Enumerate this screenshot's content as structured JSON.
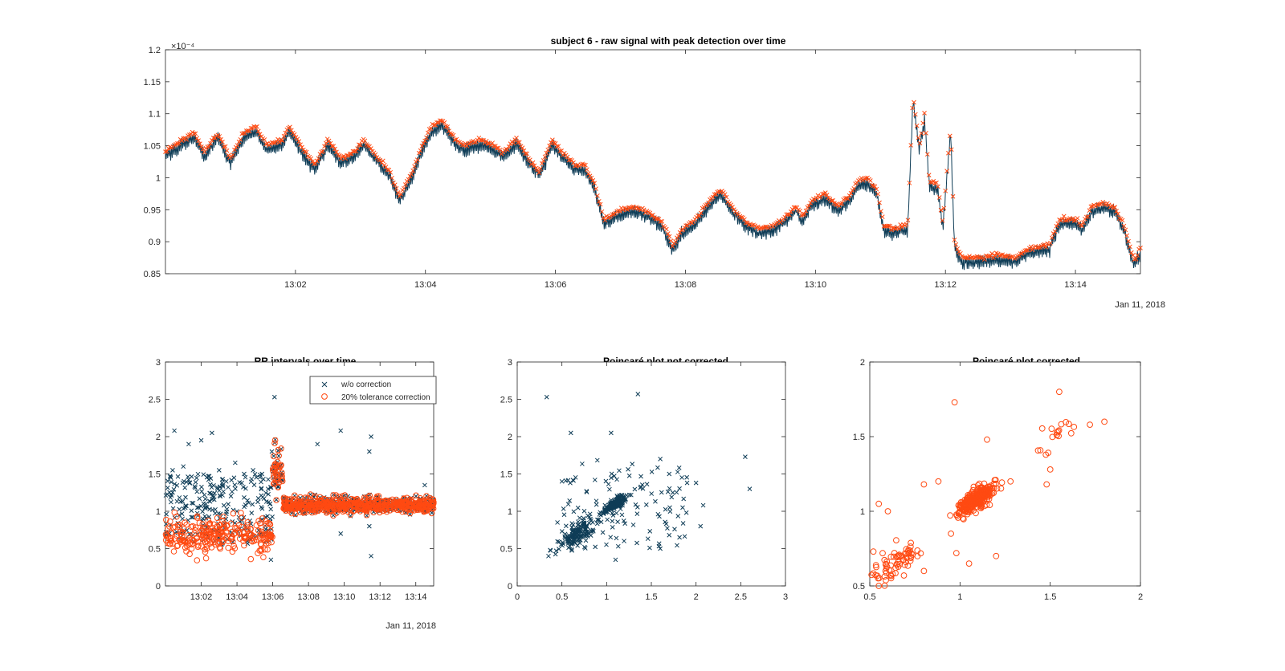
{
  "figure": {
    "background": "#ffffff",
    "colors": {
      "signal": "#0f3d57",
      "peaks": "#ff4a12",
      "axis": "#262626"
    }
  },
  "chart_data": [
    {
      "id": "top",
      "type": "line",
      "title": "subject 6 - raw signal with peak detection over time",
      "x_axis": "time",
      "xlim_min": [
        0.0,
        15.0
      ],
      "x_ticks_min": [
        2,
        4,
        6,
        8,
        10,
        12,
        14
      ],
      "x_tick_labels": [
        "13:02",
        "13:04",
        "13:06",
        "13:08",
        "13:10",
        "13:12",
        "13:14"
      ],
      "x_axis_note": "Jan 11, 2018",
      "ylim": [
        0.85,
        1.2
      ],
      "y_ticks": [
        0.85,
        0.9,
        0.95,
        1.0,
        1.05,
        1.1,
        1.15,
        1.2
      ],
      "y_tick_labels": [
        "0.85",
        "0.9",
        "0.95",
        "1",
        "1.05",
        "1.1",
        "1.15",
        "1.2"
      ],
      "y_exponent": "×10⁻⁴",
      "series": [
        {
          "style": "line",
          "color": "#0f3d57",
          "envelope_min": [
            [
              0.0,
              1.04
            ],
            [
              0.25,
              1.06
            ],
            [
              0.45,
              1.07
            ],
            [
              0.6,
              1.04
            ],
            [
              0.8,
              1.07
            ],
            [
              1.0,
              1.03
            ],
            [
              1.2,
              1.07
            ],
            [
              1.4,
              1.08
            ],
            [
              1.55,
              1.05
            ],
            [
              1.8,
              1.06
            ],
            [
              1.9,
              1.08
            ],
            [
              2.15,
              1.04
            ],
            [
              2.3,
              1.02
            ],
            [
              2.5,
              1.06
            ],
            [
              2.7,
              1.03
            ],
            [
              2.9,
              1.04
            ],
            [
              3.05,
              1.06
            ],
            [
              3.2,
              1.04
            ],
            [
              3.45,
              1.01
            ],
            [
              3.6,
              0.97
            ],
            [
              3.8,
              1.01
            ],
            [
              3.95,
              1.05
            ],
            [
              4.1,
              1.08
            ],
            [
              4.25,
              1.09
            ],
            [
              4.45,
              1.06
            ],
            [
              4.6,
              1.05
            ],
            [
              4.85,
              1.06
            ],
            [
              5.05,
              1.05
            ],
            [
              5.2,
              1.04
            ],
            [
              5.4,
              1.06
            ],
            [
              5.6,
              1.03
            ],
            [
              5.75,
              1.01
            ],
            [
              5.95,
              1.06
            ],
            [
              6.1,
              1.04
            ],
            [
              6.3,
              1.02
            ],
            [
              6.45,
              1.02
            ],
            [
              6.6,
              0.99
            ],
            [
              6.75,
              0.935
            ],
            [
              7.0,
              0.95
            ],
            [
              7.2,
              0.955
            ],
            [
              7.45,
              0.945
            ],
            [
              7.65,
              0.93
            ],
            [
              7.8,
              0.895
            ],
            [
              7.95,
              0.92
            ],
            [
              8.15,
              0.935
            ],
            [
              8.3,
              0.955
            ],
            [
              8.45,
              0.975
            ],
            [
              8.55,
              0.98
            ],
            [
              8.75,
              0.95
            ],
            [
              8.95,
              0.93
            ],
            [
              9.15,
              0.92
            ],
            [
              9.35,
              0.925
            ],
            [
              9.55,
              0.94
            ],
            [
              9.7,
              0.955
            ],
            [
              9.8,
              0.94
            ],
            [
              9.95,
              0.965
            ],
            [
              10.15,
              0.975
            ],
            [
              10.35,
              0.955
            ],
            [
              10.55,
              0.975
            ],
            [
              10.65,
              0.995
            ],
            [
              10.8,
              1.0
            ],
            [
              10.95,
              0.98
            ],
            [
              11.05,
              0.925
            ],
            [
              11.2,
              0.92
            ],
            [
              11.3,
              0.925
            ],
            [
              11.42,
              0.925
            ],
            [
              11.5,
              1.13
            ],
            [
              11.6,
              1.05
            ],
            [
              11.68,
              1.1
            ],
            [
              11.75,
              0.995
            ],
            [
              11.88,
              0.99
            ],
            [
              11.96,
              0.93
            ],
            [
              12.08,
              1.08
            ],
            [
              12.14,
              0.9
            ],
            [
              12.25,
              0.875
            ],
            [
              12.5,
              0.875
            ],
            [
              12.8,
              0.88
            ],
            [
              13.05,
              0.875
            ],
            [
              13.3,
              0.89
            ],
            [
              13.6,
              0.895
            ],
            [
              13.75,
              0.935
            ],
            [
              14.0,
              0.935
            ],
            [
              14.1,
              0.925
            ],
            [
              14.25,
              0.955
            ],
            [
              14.45,
              0.96
            ],
            [
              14.6,
              0.955
            ],
            [
              14.75,
              0.925
            ],
            [
              14.9,
              0.87
            ],
            [
              15.0,
              0.89
            ]
          ]
        },
        {
          "style": "markers-x",
          "color": "#ff4a12",
          "name": "peaks"
        }
      ]
    },
    {
      "id": "rr",
      "type": "scatter",
      "title": "RR intervals over time",
      "x_axis": "time",
      "xlim_min": [
        0.0,
        15.0
      ],
      "x_ticks_min": [
        2,
        4,
        6,
        8,
        10,
        12,
        14
      ],
      "x_tick_labels": [
        "13:02",
        "13:04",
        "13:06",
        "13:08",
        "13:10",
        "13:12",
        "13:14"
      ],
      "x_axis_note": "Jan 11, 2018",
      "ylim": [
        0,
        3
      ],
      "y_ticks": [
        0,
        0.5,
        1,
        1.5,
        2,
        2.5,
        3
      ],
      "y_tick_labels": [
        "0",
        "0.5",
        "1",
        "1.5",
        "2",
        "2.5",
        "3"
      ],
      "legend": {
        "placement": "top-right",
        "entries": [
          {
            "label": "w/o correction",
            "marker": "x",
            "color": "#0f3d57"
          },
          {
            "label": "20% tolerance correction",
            "marker": "o",
            "color": "#ff4a12"
          }
        ]
      },
      "points_uncorrected_sample": [
        [
          0.3,
          1.45
        ],
        [
          0.5,
          2.08
        ],
        [
          0.4,
          1.55
        ],
        [
          1.0,
          1.6
        ],
        [
          1.3,
          1.9
        ],
        [
          2.0,
          1.95
        ],
        [
          2.6,
          2.05
        ],
        [
          3.0,
          1.55
        ],
        [
          3.4,
          1.4
        ],
        [
          3.9,
          1.65
        ],
        [
          4.4,
          1.5
        ],
        [
          4.9,
          1.55
        ],
        [
          5.4,
          1.5
        ],
        [
          5.95,
          1.8
        ],
        [
          6.1,
          2.53
        ],
        [
          5.9,
          0.35
        ],
        [
          8.5,
          1.9
        ],
        [
          9.8,
          2.08
        ],
        [
          10.2,
          1.2
        ],
        [
          9.8,
          0.7
        ],
        [
          11.5,
          2.0
        ],
        [
          11.4,
          1.8
        ],
        [
          11.5,
          0.4
        ],
        [
          11.4,
          0.8
        ],
        [
          14.5,
          1.35
        ]
      ],
      "corrected_segments": [
        {
          "t_range": [
            0.0,
            6.0
          ],
          "y_center": 0.68,
          "spread": 0.12
        },
        {
          "t_range": [
            6.0,
            6.55
          ],
          "y_center": 1.5,
          "spread": 0.15
        },
        {
          "t_range": [
            6.55,
            15.0
          ],
          "y_center": 1.08,
          "spread": 0.05
        }
      ]
    },
    {
      "id": "poincare_nc",
      "type": "scatter",
      "title": "Poincaré plot not corrected",
      "xlim": [
        0,
        3
      ],
      "ylim": [
        0,
        3
      ],
      "x_ticks": [
        0,
        0.5,
        1,
        1.5,
        2,
        2.5,
        3
      ],
      "x_tick_labels": [
        "0",
        "0.5",
        "1",
        "1.5",
        "2",
        "2.5",
        "3"
      ],
      "y_ticks": [
        0,
        0.5,
        1,
        1.5,
        2,
        2.5,
        3
      ],
      "y_tick_labels": [
        "0",
        "0.5",
        "1",
        "1.5",
        "2",
        "2.5",
        "3"
      ],
      "marker": "x",
      "clusters": [
        {
          "center": [
            1.1,
            1.1
          ],
          "spread": 0.06,
          "count": 150
        },
        {
          "center": [
            0.68,
            0.7
          ],
          "spread": 0.12,
          "count": 150
        }
      ],
      "outliers": [
        [
          0.33,
          2.53
        ],
        [
          1.35,
          2.57
        ],
        [
          2.55,
          1.73
        ],
        [
          2.6,
          1.3
        ],
        [
          1.05,
          2.05
        ],
        [
          0.6,
          2.05
        ],
        [
          1.9,
          1.38
        ],
        [
          2.0,
          1.38
        ],
        [
          2.08,
          1.08
        ],
        [
          2.05,
          0.8
        ],
        [
          1.6,
          1.7
        ],
        [
          1.7,
          1.5
        ],
        [
          1.85,
          1.05
        ],
        [
          0.45,
          0.85
        ],
        [
          0.5,
          1.4
        ],
        [
          0.35,
          0.4
        ],
        [
          1.6,
          0.5
        ],
        [
          1.7,
          0.68
        ],
        [
          1.1,
          0.35
        ]
      ]
    },
    {
      "id": "poincare_c",
      "type": "scatter",
      "title": "Poincaré plot corrected",
      "xlim": [
        0.5,
        2
      ],
      "ylim": [
        0.5,
        2
      ],
      "x_ticks": [
        0.5,
        1,
        1.5,
        2
      ],
      "x_tick_labels": [
        "0.5",
        "1",
        "1.5",
        "2"
      ],
      "y_ticks": [
        0.5,
        1,
        1.5,
        2
      ],
      "y_tick_labels": [
        "0.5",
        "1",
        "1.5",
        "2"
      ],
      "marker": "o",
      "clusters": [
        {
          "center": [
            1.09,
            1.08
          ],
          "spread": 0.05,
          "count": 300
        },
        {
          "center": [
            0.63,
            0.64
          ],
          "spread": 0.07,
          "count": 70
        },
        {
          "center": [
            1.52,
            1.5
          ],
          "spread": 0.07,
          "count": 18
        }
      ],
      "outliers": [
        [
          0.97,
          1.73
        ],
        [
          1.55,
          1.8
        ],
        [
          1.8,
          1.6
        ],
        [
          1.72,
          1.58
        ],
        [
          1.48,
          1.18
        ],
        [
          1.28,
          1.2
        ],
        [
          1.5,
          1.28
        ],
        [
          0.55,
          1.05
        ],
        [
          0.6,
          1.0
        ],
        [
          0.8,
          1.18
        ],
        [
          0.88,
          1.2
        ],
        [
          1.15,
          1.48
        ],
        [
          0.95,
          0.85
        ],
        [
          0.98,
          0.72
        ],
        [
          1.2,
          0.7
        ],
        [
          1.05,
          0.65
        ],
        [
          0.55,
          0.5
        ],
        [
          0.8,
          0.6
        ],
        [
          0.52,
          0.73
        ]
      ]
    }
  ]
}
